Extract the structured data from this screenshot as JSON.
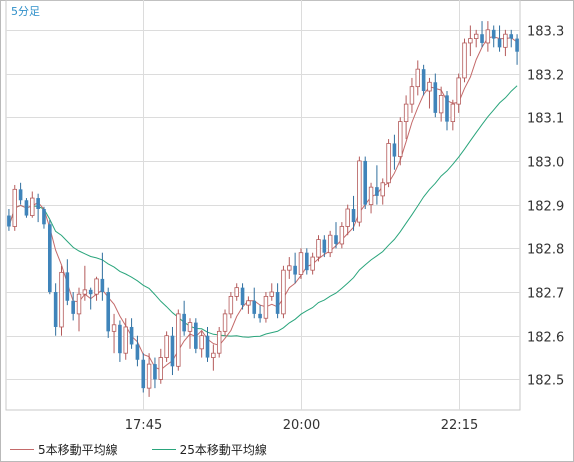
{
  "chart_data": {
    "type": "candlestick",
    "timeframe_label": "5分足",
    "x_tick_labels": [
      "17:45",
      "20:00",
      "22:15"
    ],
    "y_ticks": [
      182.5,
      182.6,
      182.7,
      182.8,
      182.9,
      183.0,
      183.1,
      183.2,
      183.3
    ],
    "ylim": [
      182.43,
      183.35
    ],
    "grid": true,
    "up_color": "#b45a5a",
    "down_color": "#3f84ba",
    "ma_series": [
      {
        "name": "5本移動平均線",
        "color": "#c46a6a"
      },
      {
        "name": "25本移動平均線",
        "color": "#2aa57c"
      }
    ],
    "candles": [
      [
        182.875,
        182.89,
        182.84,
        182.85
      ],
      [
        182.85,
        182.945,
        182.84,
        182.935
      ],
      [
        182.935,
        182.95,
        182.9,
        182.91
      ],
      [
        182.91,
        182.915,
        182.87,
        182.875
      ],
      [
        182.875,
        182.93,
        182.87,
        182.915
      ],
      [
        182.915,
        182.925,
        182.86,
        182.89
      ],
      [
        182.89,
        182.895,
        182.845,
        182.855
      ],
      [
        182.855,
        182.865,
        182.695,
        182.7
      ],
      [
        182.7,
        182.72,
        182.6,
        182.62
      ],
      [
        182.62,
        182.76,
        182.6,
        182.745
      ],
      [
        182.745,
        182.775,
        182.67,
        182.68
      ],
      [
        182.68,
        182.7,
        182.635,
        182.65
      ],
      [
        182.65,
        182.71,
        182.61,
        182.695
      ],
      [
        182.695,
        182.76,
        182.68,
        182.705
      ],
      [
        182.705,
        182.71,
        182.66,
        182.695
      ],
      [
        182.695,
        182.735,
        182.68,
        182.73
      ],
      [
        182.73,
        182.79,
        182.68,
        182.7
      ],
      [
        182.7,
        182.71,
        182.595,
        182.61
      ],
      [
        182.61,
        182.65,
        182.56,
        182.625
      ],
      [
        182.625,
        182.635,
        182.54,
        182.56
      ],
      [
        182.56,
        182.64,
        182.545,
        182.62
      ],
      [
        182.62,
        182.64,
        182.57,
        182.58
      ],
      [
        182.58,
        182.6,
        182.53,
        182.545
      ],
      [
        182.545,
        182.56,
        182.47,
        182.48
      ],
      [
        182.48,
        182.56,
        182.46,
        182.535
      ],
      [
        182.535,
        182.55,
        182.48,
        182.5
      ],
      [
        182.5,
        182.57,
        182.49,
        182.55
      ],
      [
        182.55,
        182.61,
        182.54,
        182.6
      ],
      [
        182.6,
        182.62,
        182.51,
        182.53
      ],
      [
        182.53,
        182.66,
        182.52,
        182.65
      ],
      [
        182.65,
        182.68,
        182.6,
        182.61
      ],
      [
        182.61,
        182.64,
        182.57,
        182.63
      ],
      [
        182.63,
        182.64,
        182.56,
        182.57
      ],
      [
        182.57,
        182.61,
        182.55,
        182.6
      ],
      [
        182.6,
        182.62,
        182.54,
        182.55
      ],
      [
        182.55,
        182.58,
        182.52,
        182.56
      ],
      [
        182.56,
        182.62,
        182.55,
        182.61
      ],
      [
        182.61,
        182.66,
        182.6,
        182.65
      ],
      [
        182.65,
        182.7,
        182.64,
        182.69
      ],
      [
        182.69,
        182.72,
        182.68,
        182.71
      ],
      [
        182.71,
        182.72,
        182.66,
        182.67
      ],
      [
        182.67,
        182.69,
        182.65,
        182.68
      ],
      [
        182.68,
        182.71,
        182.64,
        182.65
      ],
      [
        182.65,
        182.67,
        182.63,
        182.64
      ],
      [
        182.64,
        182.7,
        182.63,
        182.69
      ],
      [
        182.69,
        182.72,
        182.68,
        182.7
      ],
      [
        182.7,
        182.72,
        182.64,
        182.65
      ],
      [
        182.65,
        182.76,
        182.64,
        182.75
      ],
      [
        182.75,
        182.78,
        182.73,
        182.76
      ],
      [
        182.76,
        182.79,
        182.72,
        182.74
      ],
      [
        182.74,
        182.8,
        182.73,
        182.79
      ],
      [
        182.79,
        182.8,
        182.74,
        182.75
      ],
      [
        182.75,
        182.79,
        182.74,
        182.78
      ],
      [
        182.78,
        182.83,
        182.77,
        182.82
      ],
      [
        182.82,
        182.83,
        182.78,
        182.79
      ],
      [
        182.79,
        182.84,
        182.78,
        182.83
      ],
      [
        182.83,
        182.86,
        182.8,
        182.81
      ],
      [
        182.81,
        182.86,
        182.8,
        182.85
      ],
      [
        182.85,
        182.9,
        182.83,
        182.89
      ],
      [
        182.89,
        182.92,
        182.84,
        182.86
      ],
      [
        182.86,
        183.01,
        182.85,
        183.0
      ],
      [
        183.0,
        183.01,
        182.89,
        182.9
      ],
      [
        182.9,
        182.95,
        182.88,
        182.94
      ],
      [
        182.94,
        182.99,
        182.9,
        182.92
      ],
      [
        182.92,
        182.96,
        182.9,
        182.95
      ],
      [
        182.95,
        183.05,
        182.94,
        183.04
      ],
      [
        183.04,
        183.06,
        182.98,
        183.01
      ],
      [
        183.01,
        183.1,
        182.99,
        183.09
      ],
      [
        183.09,
        183.15,
        183.05,
        183.13
      ],
      [
        183.13,
        183.19,
        183.11,
        183.17
      ],
      [
        183.17,
        183.23,
        183.15,
        183.21
      ],
      [
        183.21,
        183.22,
        183.15,
        183.16
      ],
      [
        183.16,
        183.19,
        183.12,
        183.18
      ],
      [
        183.18,
        183.2,
        183.1,
        183.11
      ],
      [
        183.11,
        183.17,
        183.09,
        183.15
      ],
      [
        183.15,
        183.16,
        183.07,
        183.09
      ],
      [
        183.09,
        183.14,
        183.07,
        183.13
      ],
      [
        183.13,
        183.2,
        183.11,
        183.19
      ],
      [
        183.19,
        183.28,
        183.18,
        183.27
      ],
      [
        183.27,
        183.31,
        183.24,
        183.28
      ],
      [
        183.28,
        183.3,
        183.26,
        183.29
      ],
      [
        183.29,
        183.32,
        183.26,
        183.27
      ],
      [
        183.27,
        183.32,
        183.25,
        183.3
      ],
      [
        183.3,
        183.31,
        183.26,
        183.28
      ],
      [
        183.28,
        183.31,
        183.25,
        183.26
      ],
      [
        183.26,
        183.3,
        183.24,
        183.29
      ],
      [
        183.29,
        183.3,
        183.26,
        183.28
      ],
      [
        183.28,
        183.29,
        183.22,
        183.25
      ]
    ]
  }
}
